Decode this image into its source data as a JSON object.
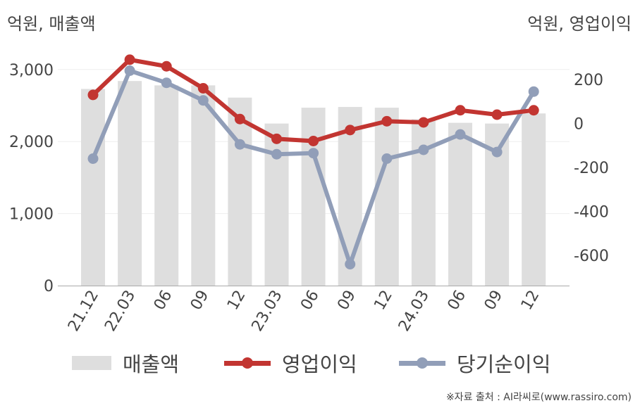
{
  "units": {
    "left": "억원, 매출액",
    "right": "억원, 영업이익"
  },
  "legend": {
    "revenue": "매출액",
    "op_income": "영업이익",
    "net_income": "당기순이익"
  },
  "source": "※자료 출처 : AI라씨로(www.rassiro.com)",
  "colors": {
    "bar": "#dedede",
    "op_income": "#c23531",
    "net_income": "#919eb8",
    "grid": "#eeeeee",
    "axis": "#aaaaaa"
  },
  "chart_data": {
    "type": "bar",
    "categories": [
      "21.12",
      "22.03",
      "06",
      "09",
      "12",
      "23.03",
      "06",
      "09",
      "12",
      "24.03",
      "06",
      "09",
      "12"
    ],
    "series": [
      {
        "name": "매출액",
        "type": "bar",
        "axis": "left",
        "values": [
          2730,
          2840,
          2780,
          2780,
          2610,
          2250,
          2470,
          2480,
          2470,
          2310,
          2260,
          2250,
          2390
        ]
      },
      {
        "name": "영업이익",
        "type": "line",
        "axis": "right",
        "values": [
          130,
          290,
          260,
          160,
          20,
          -70,
          -80,
          -30,
          10,
          5,
          60,
          40,
          60
        ]
      },
      {
        "name": "당기순이익",
        "type": "line",
        "axis": "right",
        "values": [
          -160,
          240,
          185,
          105,
          -95,
          -140,
          -135,
          -640,
          -160,
          -120,
          -50,
          -130,
          145
        ]
      }
    ],
    "left_axis": {
      "ticks": [
        0,
        1000,
        2000,
        3000
      ],
      "tick_labels": [
        "0",
        "1,000",
        "2,000",
        "3,000"
      ],
      "range": [
        0,
        3000
      ]
    },
    "right_axis": {
      "ticks": [
        -600,
        -400,
        -200,
        0,
        200
      ],
      "tick_labels": [
        "-600",
        "-400",
        "-200",
        "0",
        "200"
      ]
    },
    "grid": true,
    "legend_position": "bottom"
  }
}
